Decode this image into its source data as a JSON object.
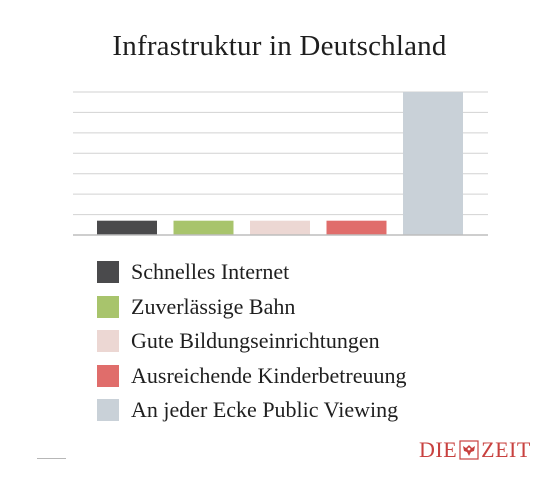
{
  "chart_data": {
    "type": "bar",
    "title": "Infrastruktur in Deutschland",
    "categories": [
      "Schnelles Internet",
      "Zuverlässige Bahn",
      "Gute Bildungseinrichtungen",
      "Ausreichende Kinderbetreuung",
      "An jeder Ecke Public Viewing"
    ],
    "values": [
      0.7,
      0.7,
      0.7,
      0.7,
      7
    ],
    "colors": [
      "#4a4a4c",
      "#a8c46c",
      "#ecd7d3",
      "#e06d6b",
      "#c9d1d8"
    ],
    "ylim": [
      0,
      7
    ],
    "grid": true,
    "axes_labels": false,
    "legend_position": "bottom-left"
  },
  "logo": {
    "left": "DIE",
    "right": "ZEIT",
    "emblem_icon": "eagle-emblem-icon"
  }
}
